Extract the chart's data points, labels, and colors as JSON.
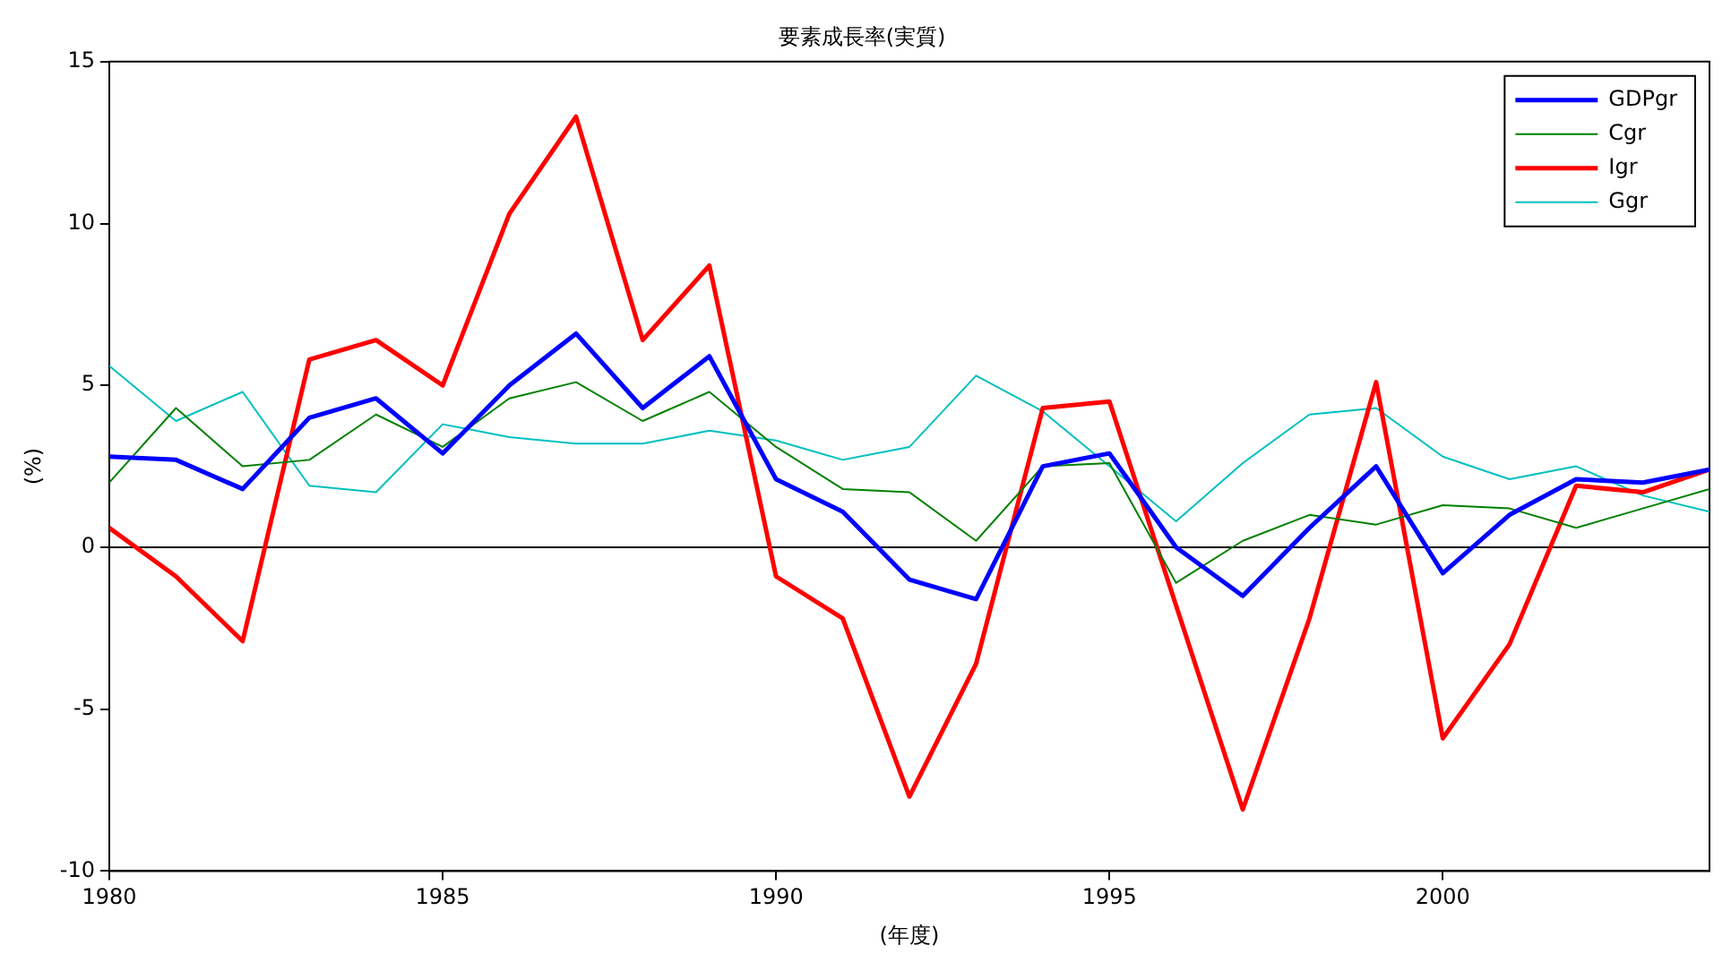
{
  "chart_data": {
    "type": "line",
    "title": "要素成長率(実質)",
    "xlabel": "(年度)",
    "ylabel": "(%)",
    "x": [
      1980,
      1981,
      1982,
      1983,
      1984,
      1985,
      1986,
      1987,
      1988,
      1989,
      1990,
      1991,
      1992,
      1993,
      1994,
      1995,
      1996,
      1997,
      1998,
      1999,
      2000,
      2001,
      2002,
      2003,
      2004
    ],
    "series": [
      {
        "name": "GDPgr",
        "color": "#0000ff",
        "values": [
          2.8,
          2.7,
          1.8,
          4.0,
          4.6,
          2.9,
          5.0,
          6.6,
          4.3,
          5.9,
          2.1,
          1.1,
          -1.0,
          -1.6,
          2.5,
          2.9,
          0.0,
          -1.5,
          0.6,
          2.5,
          -0.8,
          1.0,
          2.1,
          2.0,
          2.4
        ]
      },
      {
        "name": "Cgr",
        "color": "#008000",
        "values": [
          2.0,
          4.3,
          2.5,
          2.7,
          4.1,
          3.1,
          4.6,
          5.1,
          3.9,
          4.8,
          3.1,
          1.8,
          1.7,
          0.2,
          2.5,
          2.6,
          -1.1,
          0.2,
          1.0,
          0.7,
          1.3,
          1.2,
          0.6,
          1.2,
          1.8
        ]
      },
      {
        "name": "Igr",
        "color": "#ff0000",
        "values": [
          0.6,
          -0.9,
          -2.9,
          5.8,
          6.4,
          5.0,
          10.3,
          13.3,
          6.4,
          8.7,
          -0.9,
          -2.2,
          -7.7,
          -3.6,
          4.3,
          4.5,
          -1.8,
          -8.1,
          -2.2,
          5.1,
          -5.9,
          -3.0,
          1.9,
          1.7,
          2.4
        ]
      },
      {
        "name": "Ggr",
        "color": "#00bfbf",
        "values": [
          5.6,
          3.9,
          4.8,
          1.9,
          1.7,
          3.8,
          3.4,
          3.2,
          3.2,
          3.6,
          3.3,
          2.7,
          3.1,
          5.3,
          4.2,
          2.5,
          0.8,
          2.6,
          4.1,
          4.3,
          2.8,
          2.1,
          2.5,
          1.6,
          1.1
        ]
      }
    ],
    "xlim": [
      1980,
      2004
    ],
    "xticks": [
      1980,
      1985,
      1990,
      1995,
      2000
    ],
    "ylim": [
      -10,
      15
    ],
    "yticks": [
      -10,
      -5,
      0,
      5,
      10,
      15
    ],
    "ref_lines": [
      {
        "axis": "y",
        "value": 0,
        "color": "#000000"
      }
    ],
    "legend": "top right",
    "grid": false,
    "marker": "none",
    "line_style": "solid"
  }
}
